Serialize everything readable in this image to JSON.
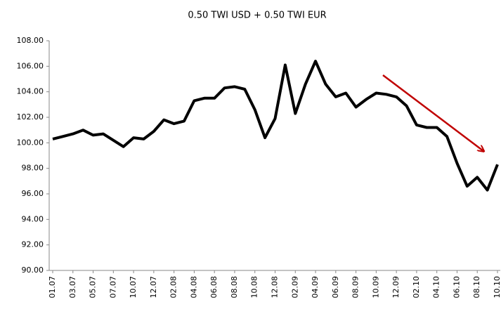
{
  "chart_data": {
    "type": "line",
    "title": "0.50 TWI USD + 0.50 TWI EUR",
    "categories": [
      "01.07",
      null,
      "03.07",
      null,
      "05.07",
      null,
      "07.07",
      null,
      "10.07",
      null,
      "12.07",
      null,
      "02.08",
      null,
      "04.08",
      null,
      "06.08",
      null,
      "08.08",
      null,
      "10.08",
      null,
      "12.08",
      null,
      "02.09",
      null,
      "04.09",
      null,
      "06.09",
      null,
      "08.09",
      null,
      "10.09",
      null,
      "12.09",
      null,
      "02.10",
      null,
      "04.10",
      null,
      "06.10",
      null,
      "08.10",
      null,
      "10.10"
    ],
    "series": [
      {
        "name": "0.50 TWI USD + 0.50 TWI EUR",
        "color": "#000000",
        "values": [
          100.3,
          100.5,
          100.7,
          101.0,
          100.6,
          100.7,
          100.2,
          99.7,
          100.4,
          100.3,
          100.9,
          101.8,
          101.5,
          101.7,
          103.3,
          103.5,
          103.5,
          104.3,
          104.4,
          104.2,
          102.6,
          100.4,
          101.9,
          106.1,
          102.3,
          104.6,
          106.4,
          104.6,
          103.6,
          103.9,
          102.8,
          103.4,
          103.9,
          103.8,
          103.6,
          102.9,
          101.4,
          101.2,
          101.2,
          100.5,
          98.4,
          96.6,
          97.3,
          96.3,
          98.3
        ]
      }
    ],
    "ylim": [
      90,
      108
    ],
    "yticks": [
      {
        "value": 90,
        "label": "90.00"
      },
      {
        "value": 92,
        "label": "92.00"
      },
      {
        "value": 94,
        "label": "94.00"
      },
      {
        "value": 96,
        "label": "96.00"
      },
      {
        "value": 98,
        "label": "98.00"
      },
      {
        "value": 100,
        "label": "100.00"
      },
      {
        "value": 102,
        "label": "102.00"
      },
      {
        "value": 104,
        "label": "104.00"
      },
      {
        "value": 106,
        "label": "106.00"
      },
      {
        "value": 108,
        "label": "108.00"
      }
    ],
    "grid": false
  }
}
